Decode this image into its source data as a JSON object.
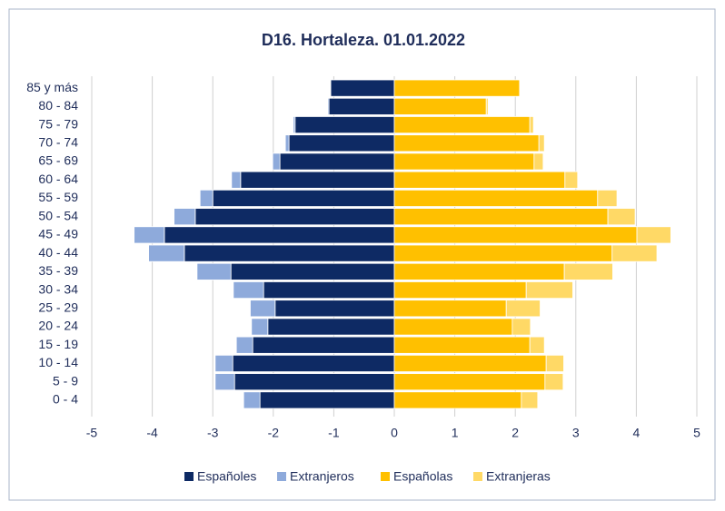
{
  "chart_data": {
    "type": "bar",
    "orientation": "horizontal",
    "stacked": true,
    "title": "D16. Hortaleza. 01.01.2022",
    "categories": [
      "0 - 4",
      "5 - 9",
      "10 - 14",
      "15 - 19",
      "20 - 24",
      "25 - 29",
      "30 - 34",
      "35 - 39",
      "40 - 44",
      "45 - 49",
      "50 - 54",
      "55 - 59",
      "60 - 64",
      "65 - 69",
      "70 - 74",
      "75 - 79",
      "80 - 84",
      "85 y más"
    ],
    "series": [
      {
        "name": "Españoles",
        "color": "#0e2a64",
        "values": [
          -2.22,
          -2.64,
          -2.67,
          -2.34,
          -2.09,
          -1.97,
          -2.16,
          -2.7,
          -3.47,
          -3.8,
          -3.29,
          -3.0,
          -2.54,
          -1.89,
          -1.74,
          -1.64,
          -1.08,
          -1.05
        ]
      },
      {
        "name": "Extranjeros",
        "color": "#8eaadb",
        "values": [
          -0.27,
          -0.32,
          -0.29,
          -0.27,
          -0.27,
          -0.41,
          -0.5,
          -0.56,
          -0.59,
          -0.5,
          -0.35,
          -0.21,
          -0.15,
          -0.12,
          -0.06,
          -0.03,
          -0.02,
          0
        ]
      },
      {
        "name": "Españolas",
        "color": "#ffc000",
        "values": [
          2.1,
          2.49,
          2.51,
          2.24,
          1.95,
          1.85,
          2.18,
          2.81,
          3.6,
          4.01,
          3.53,
          3.36,
          2.82,
          2.31,
          2.39,
          2.24,
          1.52,
          2.07
        ]
      },
      {
        "name": "Extranjeras",
        "color": "#ffd966",
        "values": [
          0.27,
          0.3,
          0.29,
          0.24,
          0.3,
          0.56,
          0.77,
          0.8,
          0.74,
          0.56,
          0.45,
          0.32,
          0.21,
          0.15,
          0.09,
          0.06,
          0.03,
          0
        ]
      }
    ],
    "xlim": [
      -5,
      5
    ],
    "xticks": [
      -5,
      -4,
      -3,
      -2,
      -1,
      0,
      1,
      2,
      3,
      4,
      5
    ],
    "grid": true,
    "legend": "bottom"
  }
}
